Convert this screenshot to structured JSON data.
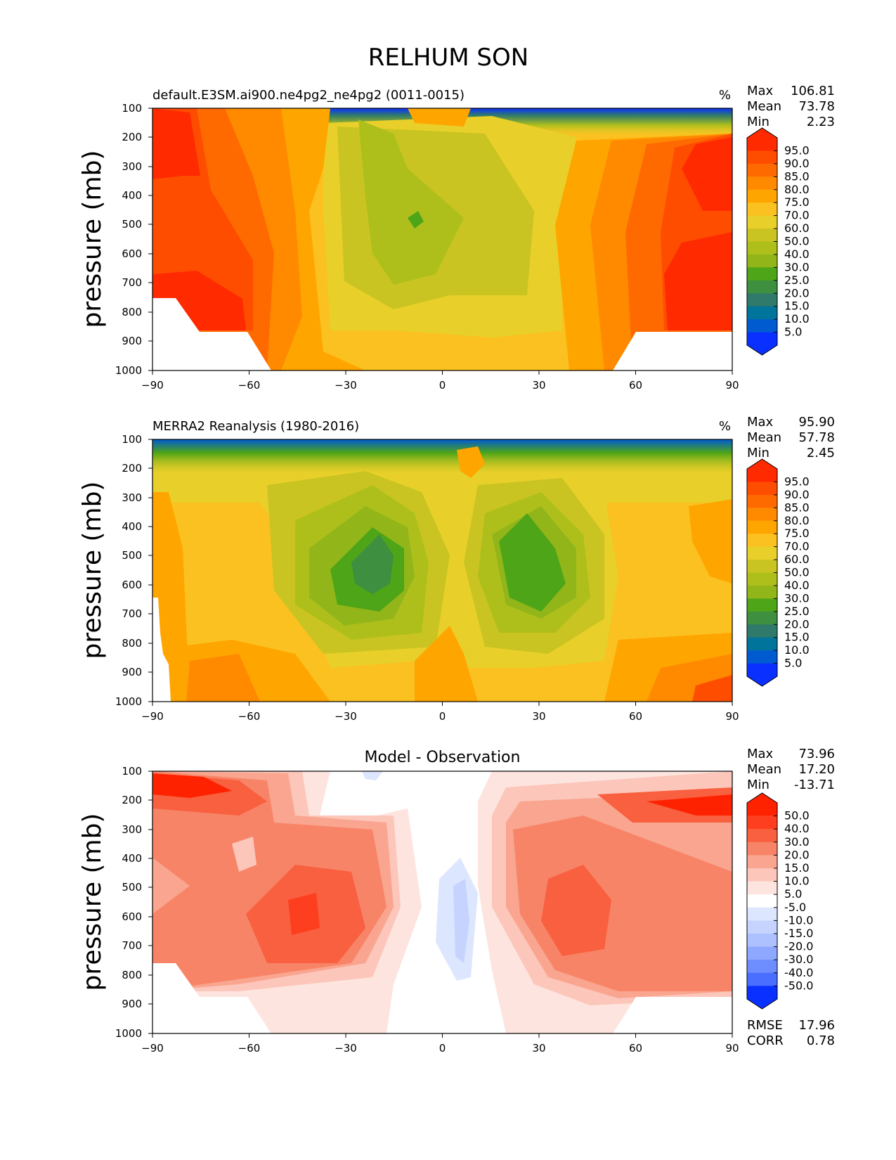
{
  "figure": {
    "title": "RELHUM SON"
  },
  "chart_data": [
    {
      "type": "heatmap",
      "title": "default.E3SM.ai900.ne4pg2_ne4pg2 (0011-0015)",
      "units": "%",
      "xlabel": "",
      "ylabel": "pressure (mb)",
      "xlim": [
        -90,
        90
      ],
      "ylim": [
        1000,
        100
      ],
      "xticks": [
        "−90",
        "−60",
        "−30",
        "0",
        "30",
        "60",
        "90"
      ],
      "yticks": [
        "100",
        "200",
        "300",
        "400",
        "500",
        "600",
        "700",
        "800",
        "900",
        "1000"
      ],
      "stats": [
        {
          "label": "Max",
          "value": "106.81"
        },
        {
          "label": "Mean",
          "value": "73.78"
        },
        {
          "label": "Min",
          "value": "2.23"
        }
      ],
      "colorbar": {
        "labels": [
          "95.0",
          "90.0",
          "85.0",
          "80.0",
          "75.0",
          "70.0",
          "60.0",
          "50.0",
          "40.0",
          "30.0",
          "25.0",
          "20.0",
          "15.0",
          "10.0",
          "5.0"
        ],
        "colors": [
          "#ff2a00",
          "#ff4d00",
          "#ff6a00",
          "#ff8a00",
          "#ffa500",
          "#fbc120",
          "#e9cf2a",
          "#c9c421",
          "#aebf1c",
          "#92b61a",
          "#4ea517",
          "#3e8f3f",
          "#2f7a6a",
          "#00749a",
          "#005bd0",
          "#0a30ff"
        ]
      },
      "field_description": "Model relative humidity: red (>95) over high latitudes below 300 mb, orange-yellow (70-85) in the lower troposphere, green minimum (30-40) near 20S at 500 mb, blue (<10) in the polar upper levels near 100 mb"
    },
    {
      "type": "heatmap",
      "title": "MERRA2 Reanalysis (1980-2016)",
      "units": "%",
      "xlabel": "",
      "ylabel": "pressure (mb)",
      "xlim": [
        -90,
        90
      ],
      "ylim": [
        1000,
        100
      ],
      "xticks": [
        "−90",
        "−60",
        "−30",
        "0",
        "30",
        "60",
        "90"
      ],
      "yticks": [
        "100",
        "200",
        "300",
        "400",
        "500",
        "600",
        "700",
        "800",
        "900",
        "1000"
      ],
      "stats": [
        {
          "label": "Max",
          "value": "95.90"
        },
        {
          "label": "Mean",
          "value": "57.78"
        },
        {
          "label": "Min",
          "value": "2.45"
        }
      ],
      "colorbar": {
        "labels": [
          "95.0",
          "90.0",
          "85.0",
          "80.0",
          "75.0",
          "70.0",
          "60.0",
          "50.0",
          "40.0",
          "30.0",
          "25.0",
          "20.0",
          "15.0",
          "10.0",
          "5.0"
        ],
        "colors": [
          "#ff2a00",
          "#ff4d00",
          "#ff6a00",
          "#ff8a00",
          "#ffa500",
          "#fbc120",
          "#e9cf2a",
          "#c9c421",
          "#aebf1c",
          "#92b61a",
          "#4ea517",
          "#3e8f3f",
          "#2f7a6a",
          "#00749a",
          "#005bd0",
          "#0a30ff"
        ]
      },
      "field_description": "Observed relative humidity: mostly yellow (60-75), two green subtropical dry minima (25-30) near 25S and 30N at 400-700 mb, orange (75-90) near the surface, blue (<10) in the upper levels near 100 mb at high latitudes"
    },
    {
      "type": "heatmap",
      "title": "Model - Observation",
      "units": "",
      "xlabel": "",
      "ylabel": "pressure (mb)",
      "xlim": [
        -90,
        90
      ],
      "ylim": [
        1000,
        100
      ],
      "xticks": [
        "−90",
        "−60",
        "−30",
        "0",
        "30",
        "60",
        "90"
      ],
      "yticks": [
        "100",
        "200",
        "300",
        "400",
        "500",
        "600",
        "700",
        "800",
        "900",
        "1000"
      ],
      "stats": [
        {
          "label": "Max",
          "value": "73.96"
        },
        {
          "label": "Mean",
          "value": "17.20"
        },
        {
          "label": "Min",
          "value": "-13.71"
        }
      ],
      "metrics": [
        {
          "label": "RMSE",
          "value": "17.96"
        },
        {
          "label": "CORR",
          "value": "0.78"
        }
      ],
      "colorbar": {
        "labels": [
          "50.0",
          "40.0",
          "30.0",
          "20.0",
          "15.0",
          "10.0",
          "5.0",
          "-5.0",
          "-10.0",
          "-15.0",
          "-20.0",
          "-30.0",
          "-40.0",
          "-50.0"
        ],
        "colors": [
          "#ff2200",
          "#fe3f1f",
          "#f8603f",
          "#f88468",
          "#f9a58f",
          "#fcc6ba",
          "#fde4de",
          "#ffffff",
          "#dde6ff",
          "#c6d3ff",
          "#adc0ff",
          "#8fa8ff",
          "#6d8dff",
          "#4a6eff",
          "#0a30ff"
        ]
      },
      "field_description": "Difference: positive (red, 20-50) over both subtropics and high latitudes, strongest (>50) near 200 mb poleward of 60 degrees, slight negative (blue, -5 to -15) near the equator between 400 and 800 mb"
    }
  ]
}
